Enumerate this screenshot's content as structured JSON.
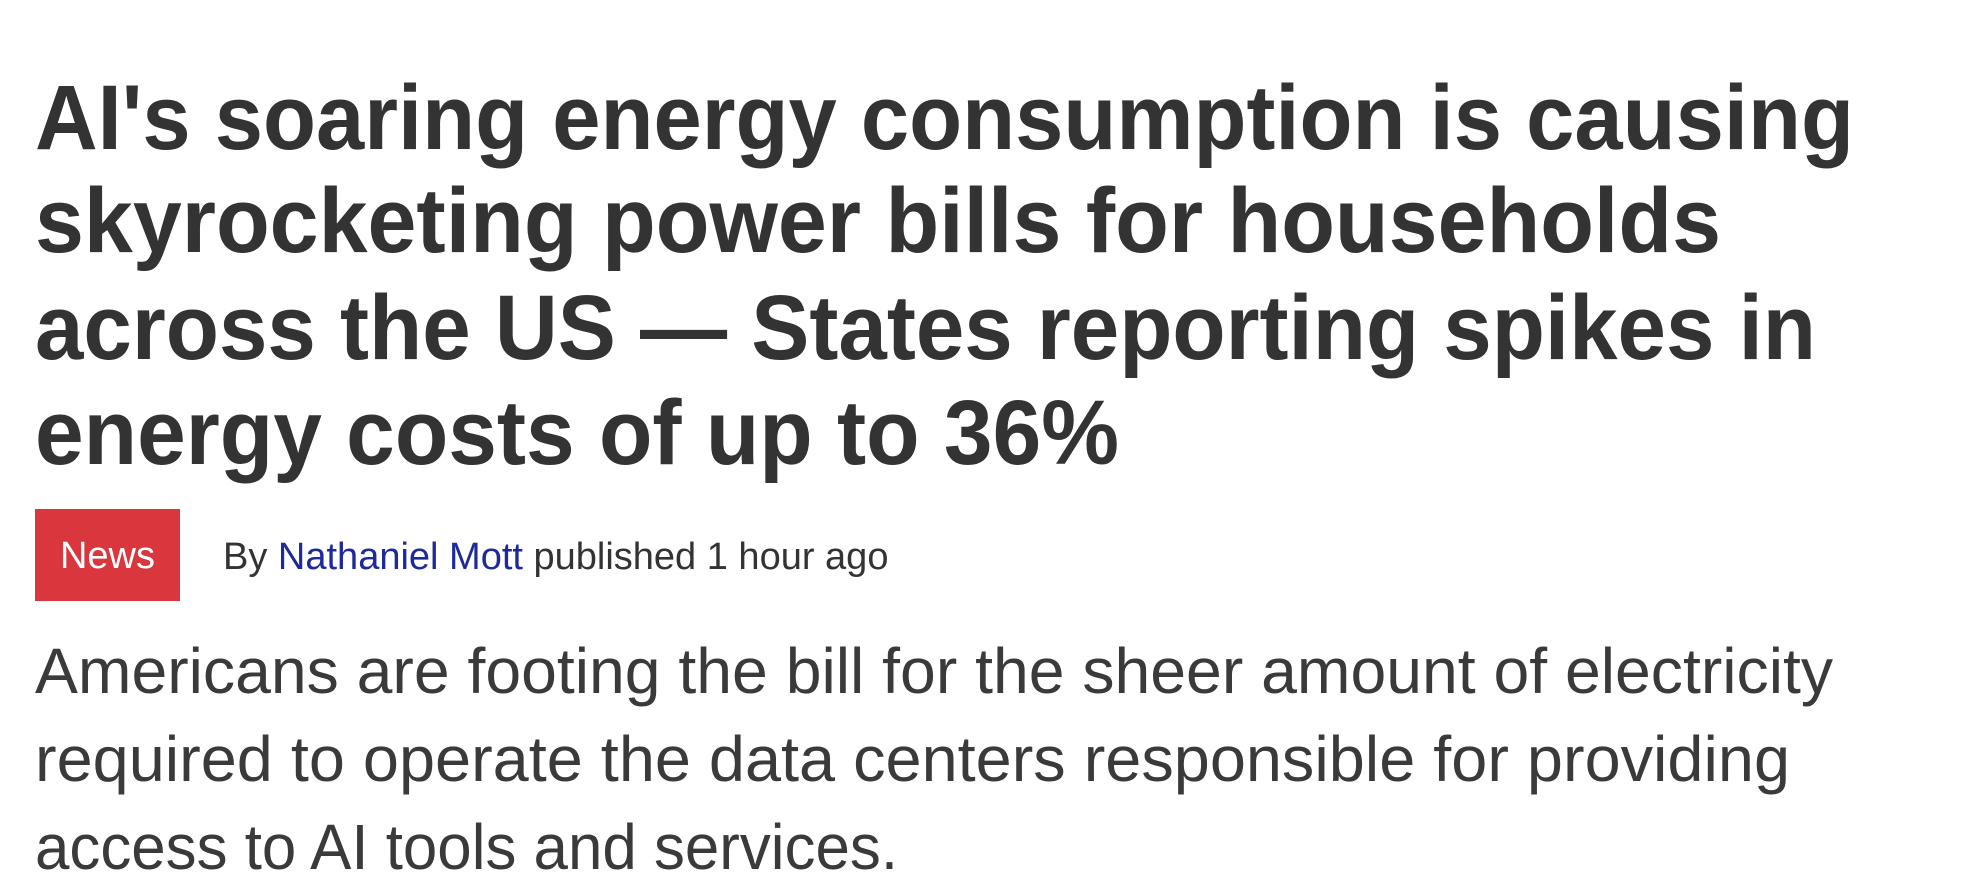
{
  "headline": {
    "lines": [
      "AI's soaring energy consumption is causing",
      "skyrocketing power bills for households",
      "across the US — States reporting spikes in",
      "energy costs of up to 36%"
    ]
  },
  "meta": {
    "badge": "News",
    "by": "By",
    "author": "Nathaniel Mott",
    "published": "published 1 hour ago"
  },
  "summary": {
    "lines": [
      "Americans are footing the bill for the sheer amount of electricity",
      "required to operate the data centers responsible for providing",
      "access to AI tools and services."
    ]
  }
}
